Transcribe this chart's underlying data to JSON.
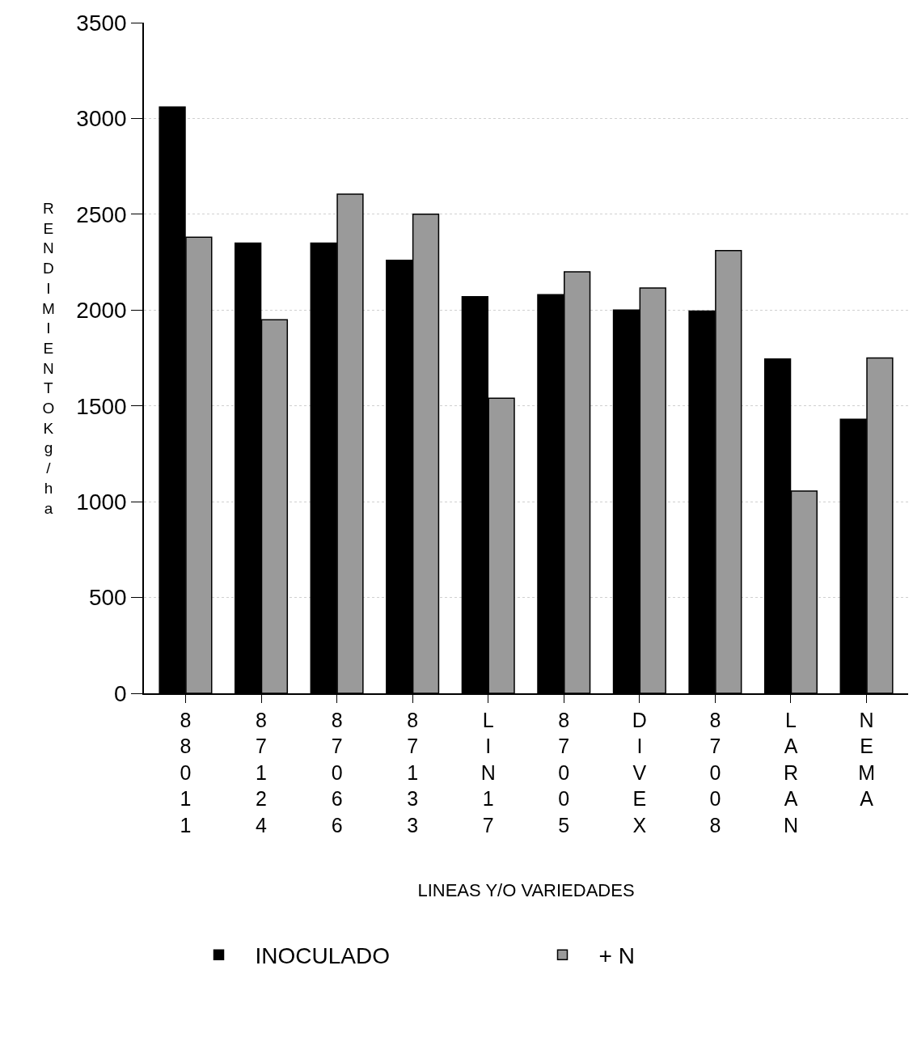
{
  "chart_data": {
    "type": "bar",
    "xlabel": "LINEAS Y/O VARIEDADES",
    "ylabel": "RENDIMIENTO Kg/ha",
    "categories": [
      "88011",
      "87124",
      "87066",
      "87133",
      "LIN17",
      "87005",
      "DIVEX",
      "87008",
      "LARAN",
      "NEMA"
    ],
    "series": [
      {
        "name": "INOCULADO",
        "color": "#000000",
        "values": [
          3060,
          2350,
          2350,
          2260,
          2070,
          2080,
          2000,
          1995,
          1745,
          1430
        ]
      },
      {
        "name": "+ N",
        "color": "#9a9a9a",
        "values": [
          2380,
          1950,
          2605,
          2500,
          1540,
          2200,
          2115,
          2310,
          1055,
          1750
        ]
      }
    ],
    "ylim": [
      0,
      3500
    ],
    "yticks": [
      0,
      500,
      1000,
      1500,
      2000,
      2500,
      3000,
      3500
    ],
    "grid": "y",
    "legend": "bottom"
  }
}
